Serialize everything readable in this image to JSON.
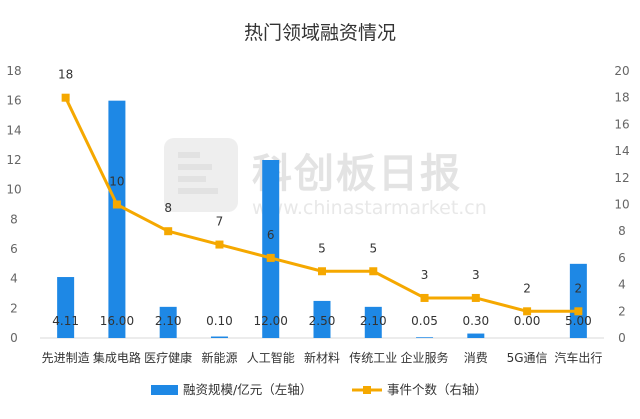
{
  "watermark": {
    "brand": "科创板日报",
    "url": "www.chinastarmarket.cn"
  },
  "chart_data": {
    "type": "bar+line",
    "title": "热门领域融资情况",
    "categories": [
      "先进制造",
      "集成电路",
      "医疗健康",
      "新能源",
      "人工智能",
      "新材料",
      "传统工业",
      "企业服务",
      "消费",
      "5G通信",
      "汽车出行"
    ],
    "series": [
      {
        "name": "融资规模/亿元（左轴）",
        "type": "bar",
        "axis": "left",
        "color": "#1e88e5",
        "values": [
          4.11,
          16.0,
          2.1,
          0.1,
          12.0,
          2.5,
          2.1,
          0.05,
          0.3,
          0.0,
          5.0
        ],
        "labels": [
          "4.11",
          "16.00",
          "2.10",
          "0.10",
          "12.00",
          "2.50",
          "2.10",
          "0.05",
          "0.30",
          "0.00",
          "5.00"
        ]
      },
      {
        "name": "事件个数（右轴）",
        "type": "line",
        "axis": "right",
        "color": "#f5a800",
        "values": [
          18,
          10,
          8,
          7,
          6,
          5,
          5,
          3,
          3,
          2,
          2
        ],
        "labels": [
          "18",
          "10",
          "8",
          "7",
          "6",
          "5",
          "5",
          "3",
          "3",
          "2",
          "2"
        ]
      }
    ],
    "y_left": {
      "min": 0,
      "max": 18,
      "step": 2
    },
    "y_right": {
      "min": 0,
      "max": 20,
      "step": 2
    },
    "grid": false,
    "legend": "bottom"
  }
}
